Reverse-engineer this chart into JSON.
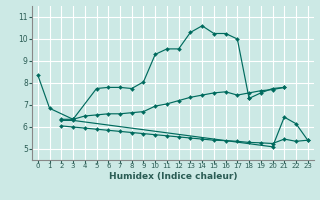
{
  "title": "",
  "xlabel": "Humidex (Indice chaleur)",
  "bg_color": "#cce9e5",
  "grid_color": "#ffffff",
  "line_color": "#006b5e",
  "xlim": [
    -0.5,
    23.5
  ],
  "ylim": [
    4.5,
    11.5
  ],
  "xticks": [
    0,
    1,
    2,
    3,
    4,
    5,
    6,
    7,
    8,
    9,
    10,
    11,
    12,
    13,
    14,
    15,
    16,
    17,
    18,
    19,
    20,
    21,
    22,
    23
  ],
  "yticks": [
    5,
    6,
    7,
    8,
    9,
    10,
    11
  ],
  "lines": [
    {
      "x": [
        0,
        1,
        3,
        5,
        6,
        7,
        8,
        9,
        10,
        11,
        12,
        13,
        14,
        15,
        16,
        17,
        18
      ],
      "y": [
        8.35,
        6.85,
        6.35,
        7.75,
        7.8,
        7.8,
        7.75,
        8.05,
        9.3,
        9.55,
        9.55,
        10.3,
        10.6,
        10.25,
        10.25,
        10.0,
        7.3
      ]
    },
    {
      "comment": "middle curve: from 18=7.3 continues to 20=7.7, 21=7.8",
      "x": [
        18,
        19,
        20,
        21
      ],
      "y": [
        7.3,
        7.55,
        7.75,
        7.8
      ]
    },
    {
      "x": [
        2,
        3,
        4,
        5,
        6,
        7,
        8,
        9,
        10,
        11,
        12,
        13,
        14,
        15,
        16,
        17,
        18,
        19,
        20,
        21
      ],
      "y": [
        6.35,
        6.35,
        6.5,
        6.55,
        6.6,
        6.6,
        6.65,
        6.7,
        6.95,
        7.05,
        7.2,
        7.35,
        7.45,
        7.55,
        7.6,
        7.45,
        7.55,
        7.65,
        7.7,
        7.8
      ]
    },
    {
      "x": [
        2,
        3,
        20,
        21,
        22,
        23
      ],
      "y": [
        6.3,
        6.3,
        5.1,
        6.45,
        6.15,
        5.4
      ]
    },
    {
      "x": [
        2,
        3,
        4,
        5,
        6,
        7,
        8,
        9,
        10,
        11,
        12,
        13,
        14,
        15,
        16,
        17,
        18,
        19,
        20,
        21,
        22,
        23
      ],
      "y": [
        6.05,
        6.0,
        5.95,
        5.9,
        5.85,
        5.8,
        5.75,
        5.7,
        5.65,
        5.6,
        5.55,
        5.5,
        5.45,
        5.4,
        5.38,
        5.35,
        5.3,
        5.28,
        5.25,
        5.45,
        5.35,
        5.4
      ]
    }
  ]
}
